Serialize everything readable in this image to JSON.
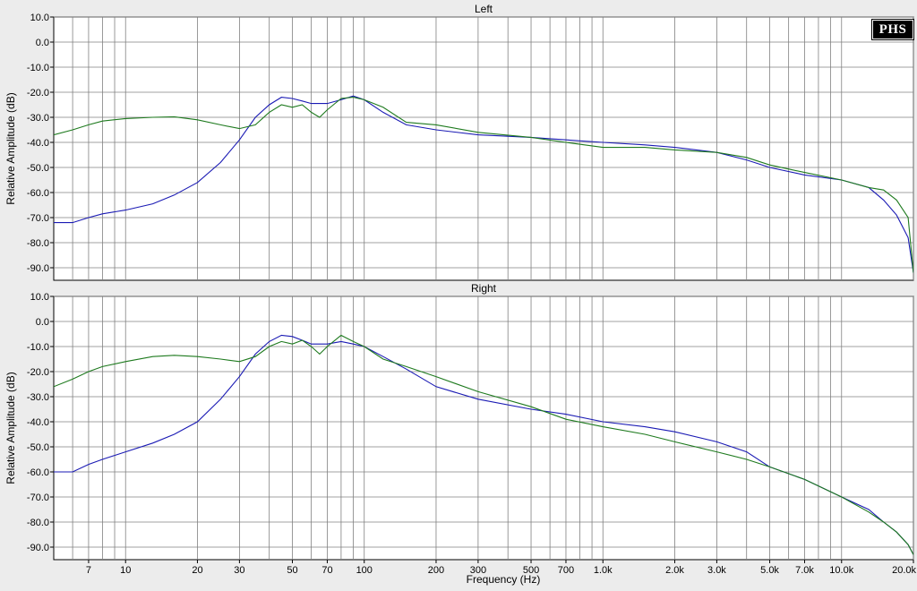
{
  "logo_text": "PHS",
  "xlabel": "Frequency (Hz)",
  "colors": {
    "series_a": "#1a1ab4",
    "series_b": "#1e7a1e",
    "grid": "#808080",
    "plot_bg": "#ffffff"
  },
  "chart_data": [
    {
      "type": "line",
      "title": "Left",
      "xlabel": "Frequency (Hz)",
      "ylabel": "Relative Amplitude (dB)",
      "x_scale": "log",
      "xlim": [
        5,
        20000
      ],
      "ylim": [
        -95,
        10
      ],
      "yticks": [
        10,
        0,
        -10,
        -20,
        -30,
        -40,
        -50,
        -60,
        -70,
        -80,
        -90
      ],
      "ytick_labels": [
        "10.0",
        "0.0",
        "-10.0",
        "-20.0",
        "-30.0",
        "-40.0",
        "-50.0",
        "-60.0",
        "-70.0",
        "-80.0",
        "-90.0"
      ],
      "grid": true,
      "series": [
        {
          "color": "#1a1ab4",
          "x": [
            5,
            6,
            7,
            8,
            10,
            13,
            16,
            20,
            25,
            30,
            35,
            40,
            45,
            50,
            55,
            60,
            70,
            80,
            90,
            100,
            120,
            150,
            200,
            300,
            500,
            700,
            1000,
            1500,
            2000,
            3000,
            4000,
            5000,
            7000,
            10000,
            13000,
            15000,
            17000,
            19000,
            20000
          ],
          "y": [
            -72,
            -72,
            -70,
            -68.5,
            -67,
            -64.5,
            -61,
            -56,
            -48,
            -39,
            -30,
            -25,
            -22,
            -22.5,
            -23.5,
            -24.5,
            -24.5,
            -23,
            -21.5,
            -23,
            -28,
            -33,
            -35,
            -37,
            -38,
            -39,
            -40,
            -41,
            -42,
            -44,
            -47,
            -50,
            -53,
            -55,
            -58,
            -63,
            -69,
            -78,
            -92
          ]
        },
        {
          "color": "#1e7a1e",
          "x": [
            5,
            6,
            7,
            8,
            10,
            13,
            16,
            20,
            25,
            30,
            35,
            40,
            45,
            50,
            55,
            60,
            65,
            70,
            80,
            90,
            100,
            120,
            150,
            200,
            300,
            500,
            700,
            1000,
            1500,
            2000,
            3000,
            4000,
            5000,
            7000,
            10000,
            13000,
            15000,
            17000,
            19000,
            20000
          ],
          "y": [
            -37,
            -35,
            -33,
            -31.5,
            -30.5,
            -30,
            -29.8,
            -31,
            -33,
            -34.5,
            -33,
            -28,
            -25,
            -26,
            -25,
            -28,
            -30,
            -27,
            -22.5,
            -22,
            -23,
            -26,
            -32,
            -33,
            -36,
            -38,
            -40,
            -42,
            -42,
            -43,
            -44,
            -46,
            -49,
            -52,
            -55,
            -58,
            -59,
            -63,
            -70,
            -92
          ]
        }
      ]
    },
    {
      "type": "line",
      "title": "Right",
      "xlabel": "Frequency (Hz)",
      "ylabel": "Relative Amplitude (dB)",
      "x_scale": "log",
      "xlim": [
        5,
        20000
      ],
      "ylim": [
        -95,
        10
      ],
      "yticks": [
        10,
        0,
        -10,
        -20,
        -30,
        -40,
        -50,
        -60,
        -70,
        -80,
        -90
      ],
      "ytick_labels": [
        "10.0",
        "0.0",
        "-10.0",
        "-20.0",
        "-30.0",
        "-40.0",
        "-50.0",
        "-60.0",
        "-70.0",
        "-80.0",
        "-90.0"
      ],
      "xticks": [
        7,
        10,
        20,
        30,
        50,
        70,
        100,
        200,
        300,
        500,
        700,
        1000,
        2000,
        3000,
        5000,
        7000,
        10000,
        20000
      ],
      "xtick_labels": [
        "7",
        "10",
        "20",
        "30",
        "50",
        "70",
        "100",
        "200",
        "300",
        "500",
        "700",
        "1.0k",
        "2.0k",
        "3.0k",
        "5.0k",
        "7.0k",
        "10.0k",
        "20.0k"
      ],
      "grid": true,
      "series": [
        {
          "color": "#1a1ab4",
          "x": [
            5,
            6,
            7,
            8,
            10,
            13,
            16,
            20,
            25,
            30,
            35,
            40,
            45,
            50,
            55,
            60,
            70,
            80,
            90,
            100,
            120,
            150,
            200,
            300,
            500,
            700,
            1000,
            1500,
            2000,
            3000,
            4000,
            5000,
            7000,
            10000,
            13000,
            15000,
            17000,
            19000,
            20000
          ],
          "y": [
            -60,
            -60,
            -57,
            -55,
            -52,
            -48.5,
            -45,
            -40,
            -31,
            -22,
            -13,
            -8,
            -5.5,
            -6,
            -7.5,
            -9,
            -9,
            -8,
            -9,
            -10,
            -14,
            -19,
            -26,
            -31,
            -35,
            -37,
            -40,
            -42,
            -44,
            -48,
            -52,
            -58,
            -63,
            -70,
            -75,
            -80,
            -84,
            -89,
            -93
          ]
        },
        {
          "color": "#1e7a1e",
          "x": [
            5,
            6,
            7,
            8,
            10,
            13,
            16,
            20,
            25,
            30,
            35,
            40,
            45,
            50,
            55,
            60,
            65,
            70,
            80,
            90,
            100,
            120,
            150,
            200,
            300,
            500,
            700,
            1000,
            1500,
            2000,
            3000,
            4000,
            5000,
            7000,
            10000,
            13000,
            15000,
            17000,
            19000,
            20000
          ],
          "y": [
            -26,
            -23,
            -20,
            -18,
            -16,
            -14,
            -13.5,
            -14,
            -15,
            -16,
            -14,
            -10,
            -8,
            -9,
            -7.5,
            -10,
            -13,
            -10,
            -5.5,
            -8,
            -10,
            -15,
            -18,
            -22,
            -28,
            -34,
            -39,
            -42,
            -45,
            -48,
            -52,
            -55,
            -58,
            -63,
            -70,
            -76,
            -80,
            -84,
            -89,
            -93
          ]
        }
      ]
    }
  ]
}
